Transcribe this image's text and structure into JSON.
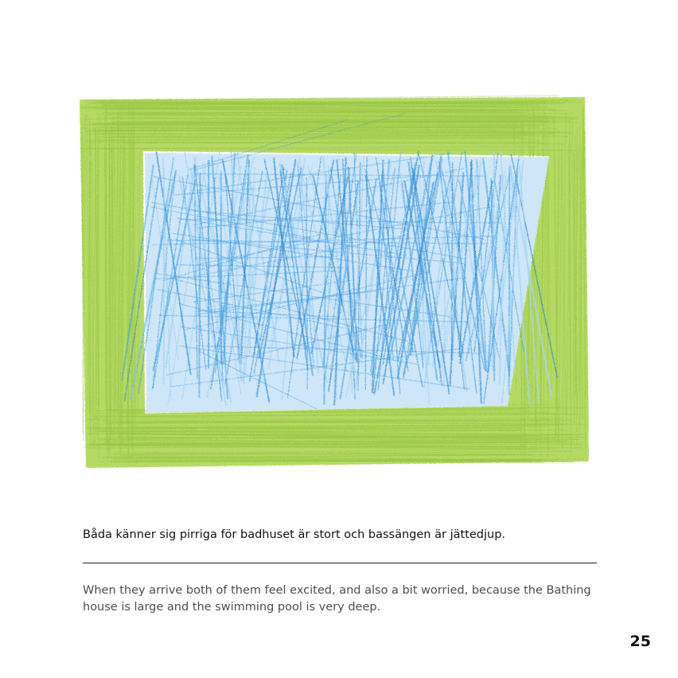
{
  "page": {
    "caption_swedish": "Båda känner sig pirriga för badhuset är stort och bassängen är jättedjup.",
    "caption_english": "When they arrive both of them feel excited, and also a bit worried, because the Bathing house is large and the swimming pool is very deep.",
    "page_number": "25"
  },
  "illustration": {
    "subject": "crayon-drawing-swimming-pool",
    "colors": {
      "frame_green": "#9ccc3a",
      "frame_green_dark": "#7fb82a",
      "water_light_blue": "#a8d4f2",
      "water_blue": "#3d9be0",
      "water_deep_blue": "#1f7fd0"
    }
  }
}
